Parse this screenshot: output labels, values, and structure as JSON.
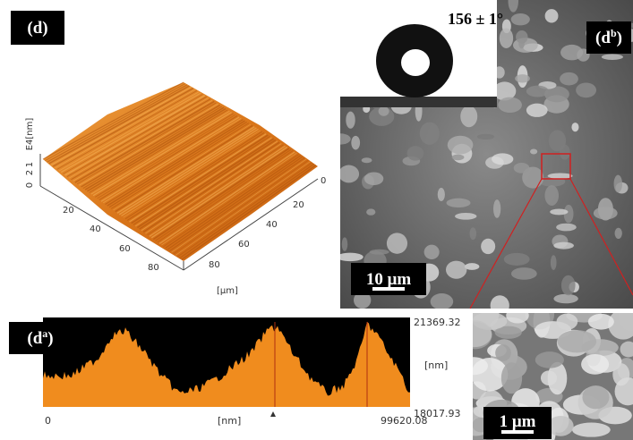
{
  "afm_panel": {
    "label": {
      "open": "(d",
      "close": ")"
    },
    "z_axis": {
      "unit": "E4[nm]",
      "ticks": [
        "2",
        "1",
        "0"
      ]
    },
    "left_axis": {
      "ticks": [
        "20",
        "40",
        "60",
        "80"
      ]
    },
    "right_axis": {
      "ticks": [
        "0",
        "20",
        "40",
        "60",
        "80"
      ]
    },
    "axis_unit": "[μm]"
  },
  "sem_panel": {
    "label": {
      "open": "(d",
      "sup": "b",
      "close": ")"
    },
    "contact_angle": "156 ± 1°",
    "scale_bar": "10 μm"
  },
  "profile_panel": {
    "label": {
      "open": "(d",
      "sup": "a",
      "close": ")"
    },
    "y_max": "21369.32",
    "y_unit": "[nm]",
    "y_min": "18017.93",
    "x_start": "0",
    "x_unit": "[nm]",
    "x_end": "99620.08"
  },
  "zoom_panel": {
    "scale_bar": "1 μm"
  }
}
